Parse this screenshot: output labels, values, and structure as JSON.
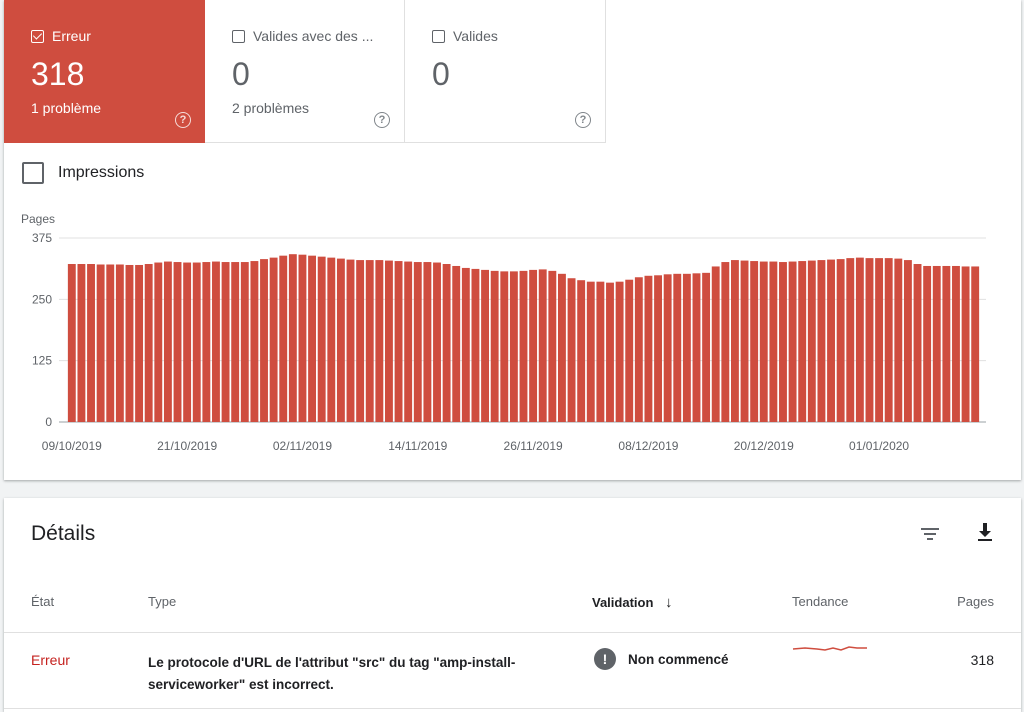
{
  "tiles": [
    {
      "label": "Erreur",
      "value": "318",
      "sub": "1 problème",
      "checked": true
    },
    {
      "label": "Valides avec des ...",
      "value": "0",
      "sub": "2 problèmes",
      "checked": false
    },
    {
      "label": "Valides",
      "value": "0",
      "sub": "",
      "checked": false
    }
  ],
  "help_glyph": "?",
  "impressions_label": "Impressions",
  "colors": {
    "error": "#cf4d3f",
    "grid": "#e0e0e0"
  },
  "chart_data": {
    "type": "bar",
    "ylabel": "Pages",
    "ylim": [
      0,
      375
    ],
    "yticks": [
      0,
      125,
      250,
      375
    ],
    "xticks": [
      "09/10/2019",
      "21/10/2019",
      "02/11/2019",
      "14/11/2019",
      "26/11/2019",
      "08/12/2019",
      "20/12/2019",
      "01/01/2020"
    ],
    "x_start": "09/10/2019",
    "values": [
      322,
      322,
      322,
      321,
      321,
      321,
      320,
      320,
      322,
      325,
      327,
      326,
      325,
      325,
      326,
      327,
      326,
      326,
      326,
      328,
      332,
      335,
      339,
      342,
      341,
      339,
      337,
      335,
      333,
      331,
      330,
      330,
      330,
      329,
      328,
      327,
      326,
      326,
      325,
      322,
      318,
      314,
      312,
      310,
      308,
      307,
      307,
      308,
      310,
      311,
      308,
      302,
      293,
      289,
      286,
      286,
      284,
      286,
      290,
      295,
      298,
      299,
      301,
      302,
      302,
      303,
      304,
      317,
      326,
      330,
      329,
      328,
      327,
      327,
      326,
      327,
      328,
      329,
      330,
      331,
      332,
      334,
      335,
      334,
      334,
      334,
      333,
      330,
      322,
      318,
      318,
      318,
      318,
      317,
      317
    ]
  },
  "details": {
    "title": "Détails",
    "filter_icon": "filter-icon",
    "download_icon": "download-icon",
    "columns": {
      "state": "État",
      "type": "Type",
      "validation": "Validation",
      "sort_arrow": "↓",
      "trend": "Tendance",
      "pages": "Pages"
    },
    "row": {
      "state": "Erreur",
      "type": "Le protocole d'URL de l'attribut \"src\" du tag \"amp-install-serviceworker\" est incorrect.",
      "validation_glyph": "!",
      "validation": "Non commencé",
      "pages": "318"
    }
  }
}
